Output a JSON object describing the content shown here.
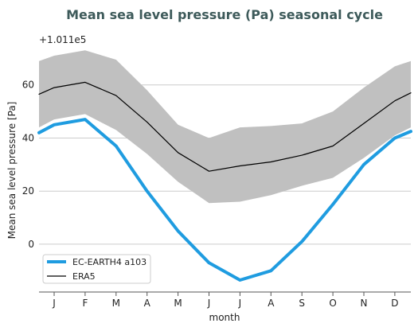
{
  "chart_data": {
    "type": "line",
    "title": "Mean sea level pressure (Pa) seasonal cycle",
    "xlabel": "month",
    "ylabel": "Mean sea level pressure [Pa]",
    "y_offset_label": "+1.011e5",
    "categories": [
      "J",
      "F",
      "M",
      "A",
      "M",
      "J",
      "J",
      "A",
      "S",
      "O",
      "N",
      "D"
    ],
    "ylim": [
      -18,
      74
    ],
    "yticks": [
      0,
      20,
      40,
      60
    ],
    "grid": "horizontal",
    "legend_position": "bottom-left",
    "series": [
      {
        "name": "EC-EARTH4 a103",
        "color": "#1f9ce0",
        "values": [
          45,
          47,
          37,
          20,
          5,
          -7,
          -13.5,
          -10,
          1,
          15,
          30,
          40
        ]
      },
      {
        "name": "ERA5",
        "color": "#000000",
        "values": [
          59,
          61,
          56,
          46,
          34.5,
          27.5,
          29.5,
          31,
          33.5,
          37,
          45.5,
          54
        ]
      }
    ],
    "band": {
      "color": "#c0c0c0",
      "upper": [
        71,
        73,
        69.5,
        58,
        45,
        40,
        44,
        44.5,
        45.5,
        50,
        59,
        67
      ],
      "lower": [
        47,
        49,
        43,
        34,
        23.5,
        15.5,
        16,
        18.5,
        22,
        25,
        32.5,
        41
      ]
    },
    "wrap": {
      "left": {
        "line0": 42,
        "line1": 56.5,
        "upper": 69,
        "lower": 44
      },
      "right": {
        "line0": 42.5,
        "line1": 57,
        "upper": 69,
        "lower": 44
      }
    }
  }
}
